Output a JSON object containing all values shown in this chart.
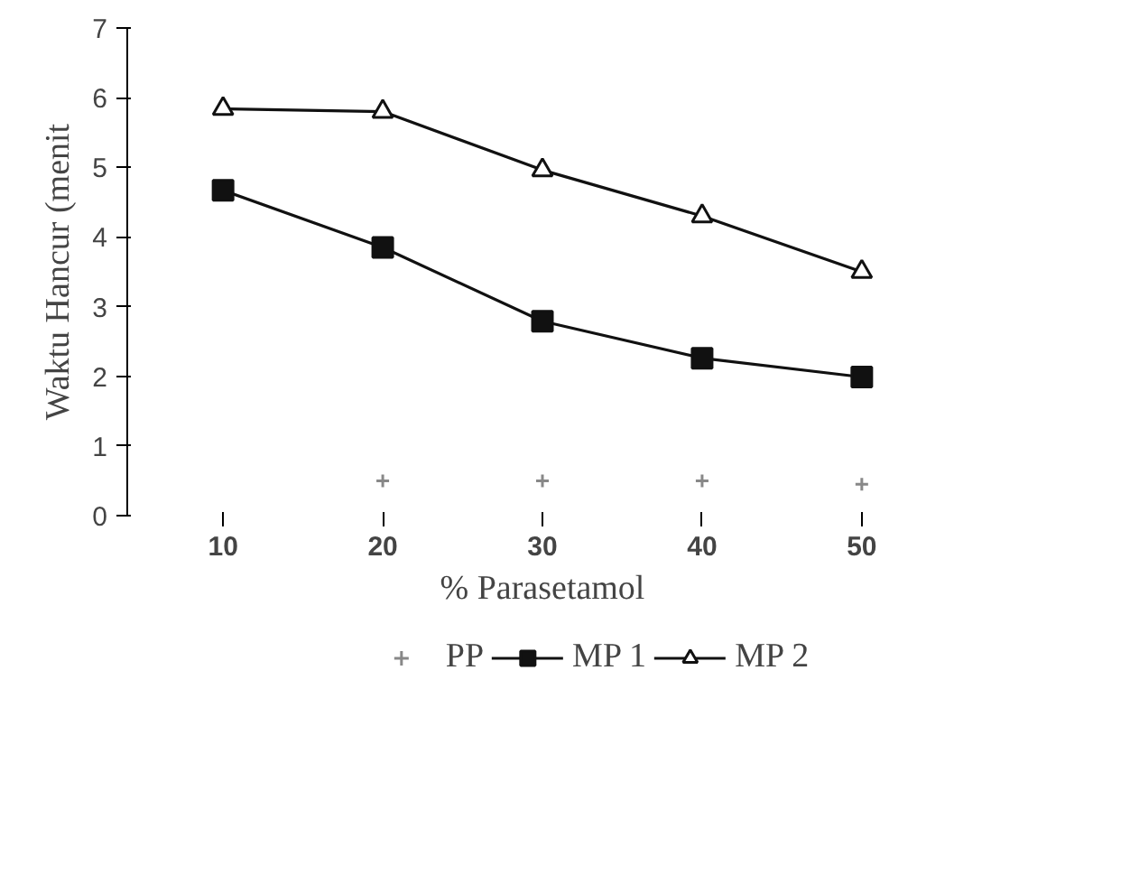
{
  "chart_data": {
    "type": "line",
    "xlabel": "% Parasetamol",
    "ylabel": "Waktu Hancur (menit",
    "categories": [
      "10",
      "20",
      "30",
      "40",
      "50"
    ],
    "ylim": [
      0,
      7
    ],
    "yticks": [
      0,
      1,
      2,
      3,
      4,
      5,
      6,
      7
    ],
    "grid": false,
    "legend": "bottom",
    "line_style": "solid",
    "series": [
      {
        "name": "PP",
        "type": "scatter",
        "marker": "cross",
        "color": "#888888",
        "values": [
          null,
          0.5,
          0.5,
          0.5,
          0.45
        ]
      },
      {
        "name": "MP 1",
        "marker": "square",
        "color": "#111111",
        "values": [
          4.67,
          3.85,
          2.79,
          2.26,
          1.99
        ]
      },
      {
        "name": "MP 2",
        "marker": "triangle",
        "color": "#111111",
        "values": [
          5.84,
          5.8,
          4.96,
          4.3,
          3.5
        ]
      }
    ]
  }
}
